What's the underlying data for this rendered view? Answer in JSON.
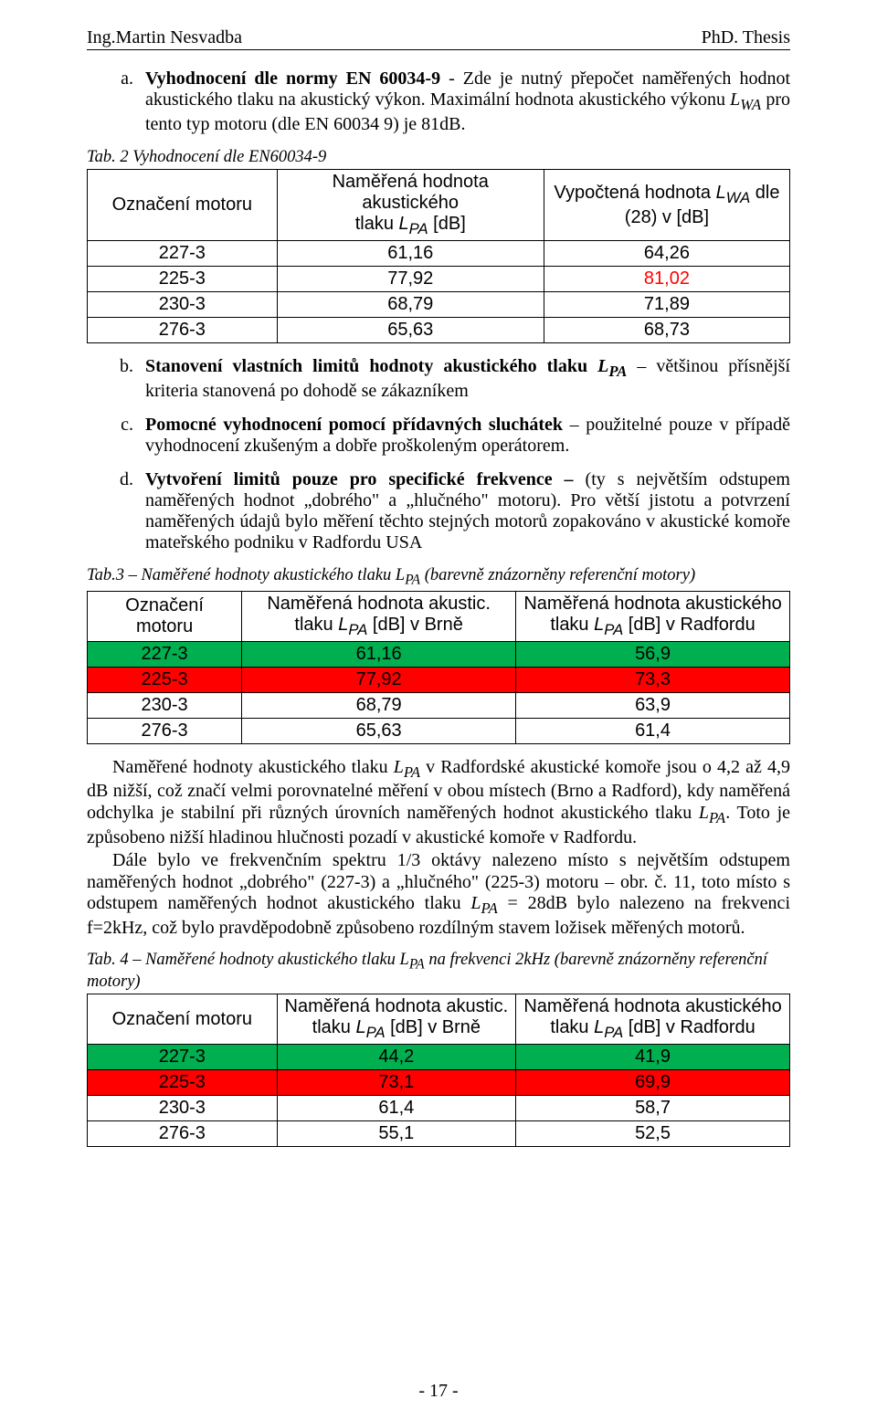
{
  "header": {
    "left": "Ing.Martin Nesvadba",
    "right": "PhD. Thesis"
  },
  "colors": {
    "green_row": "#00b050",
    "red_row": "#ff0000",
    "red_text": "#ff0000",
    "black": "#000000",
    "white": "#ffffff"
  },
  "fonts": {
    "body_family": "Times New Roman",
    "table_family": "Arial",
    "body_size_pt": 12,
    "caption_size_pt": 11
  },
  "section_a": {
    "bold": "Vyhodnocení dle normy EN 60034-9",
    "rest": " - Zde je nutný přepočet naměřených hodnot akustického tlaku na akustický výkon. Maximální hodnota akustického výkonu ",
    "lwa": "L",
    "lwa_sub": "WA",
    "rest2": " pro tento typ motoru (dle EN 60034 9) je 81dB."
  },
  "tab2": {
    "caption": "Tab. 2 Vyhodnocení dle EN60034-9",
    "headers": {
      "col1": "Označení motoru",
      "col2a": "Naměřená hodnota akustického",
      "col2b_prefix": "tlaku ",
      "lpa_L": "L",
      "lpa_sub": "PA",
      "col2b_suffix": " [dB]",
      "col3a": "Vypočtená hodnota ",
      "col3a_suffix": " dle",
      "col3b": "(28) v [dB]"
    },
    "rows": [
      {
        "motor": "227-3",
        "lpa": "61,16",
        "lwa": "64,26",
        "lwa_color": "#000000"
      },
      {
        "motor": "225-3",
        "lpa": "77,92",
        "lwa": "81,02",
        "lwa_color": "#ff0000"
      },
      {
        "motor": "230-3",
        "lpa": "68,79",
        "lwa": "71,89",
        "lwa_color": "#000000"
      },
      {
        "motor": "276-3",
        "lpa": "65,63",
        "lwa": "68,73",
        "lwa_color": "#000000"
      }
    ]
  },
  "section_b": {
    "bold": "Stanovení vlastních limitů hodnoty akustického tlaku ",
    "rest": " – většinou přísnější kriteria stanovená po dohodě se zákazníkem"
  },
  "section_c": {
    "bold": "Pomocné vyhodnocení pomocí přídavných sluchátek",
    "rest": " – použitelné pouze v případě vyhodnocení zkušeným a dobře proškoleným operátorem."
  },
  "section_d": {
    "bold": "Vytvoření limitů pouze pro specifické frekvence – ",
    "rest": "(ty s největším odstupem naměřených hodnot „dobrého\" a „hlučného\" motoru). Pro větší jistotu a potvrzení naměřených údajů bylo měření těchto stejných motorů zopakováno v akustické komoře mateřského podniku v Radfordu USA"
  },
  "tab3": {
    "caption_prefix": "Tab.3 – Naměřené hodnoty akustického tlaku ",
    "caption_suffix": " (barevně znázorněny referenční motory)",
    "headers": {
      "col1a": "Označení",
      "col1b": "motoru",
      "col2a": "Naměřená hodnota akustic.",
      "col2b_prefix": "tlaku ",
      "col2b_suffix": " [dB] v Brně",
      "col3a": "Naměřená hodnota akustického",
      "col3b_prefix": "tlaku ",
      "col3b_suffix": " [dB] v Radfordu"
    },
    "col_widths": [
      "22%",
      "39%",
      "39%"
    ],
    "rows": [
      {
        "motor": "227-3",
        "brno": "61,16",
        "radford": "56,9",
        "bg": "#00b050"
      },
      {
        "motor": "225-3",
        "brno": "77,92",
        "radford": "73,3",
        "bg": "#ff0000"
      },
      {
        "motor": "230-3",
        "brno": "68,79",
        "radford": "63,9",
        "bg": "#ffffff"
      },
      {
        "motor": "276-3",
        "brno": "65,63",
        "radford": "61,4",
        "bg": "#ffffff"
      }
    ]
  },
  "para1_a": "Naměřené hodnoty akustického tlaku ",
  "para1_b": " v Radfordské akustické komoře jsou o 4,2 až 4,9 dB nižší, což značí velmi porovnatelné měření v obou místech (Brno a Radford), kdy naměřená odchylka je stabilní při různých úrovních naměřených hodnot akustického tlaku ",
  "para1_c": ". Toto je způsobeno nižší hladinou hlučnosti pozadí v akustické komoře v Radfordu.",
  "para2_a": "Dále bylo ve frekvenčním spektru 1/3 oktávy nalezeno místo s největším odstupem naměřených hodnot „dobrého\" (227-3) a „hlučného\" (225-3) motoru – obr. č. 11, toto místo s odstupem naměřených hodnot akustického tlaku ",
  "para2_b": " = 28dB bylo nalezeno na frekvenci f=2kHz, což bylo pravděpodobně způsobeno rozdílným stavem ložisek měřených motorů.",
  "tab4": {
    "caption_prefix": "Tab. 4 – Naměřené hodnoty akustického tlaku ",
    "caption_suffix": " na frekvenci 2kHz (barevně znázorněny referenční motory)",
    "headers": {
      "col1": "Označení motoru",
      "col2a": "Naměřená hodnota akustic.",
      "col2b_prefix": "tlaku ",
      "col2b_suffix": " [dB] v Brně",
      "col3a": "Naměřená hodnota akustického",
      "col3b_prefix": "tlaku ",
      "col3b_suffix": " [dB] v Radfordu"
    },
    "col_widths": [
      "27%",
      "34%",
      "39%"
    ],
    "rows": [
      {
        "motor": "227-3",
        "brno": "44,2",
        "radford": "41,9",
        "bg": "#00b050"
      },
      {
        "motor": "225-3",
        "brno": "73,1",
        "radford": "69,9",
        "bg": "#ff0000"
      },
      {
        "motor": "230-3",
        "brno": "61,4",
        "radford": "58,7",
        "bg": "#ffffff"
      },
      {
        "motor": "276-3",
        "brno": "55,1",
        "radford": "52,5",
        "bg": "#ffffff"
      }
    ]
  },
  "footer": "- 17 -"
}
